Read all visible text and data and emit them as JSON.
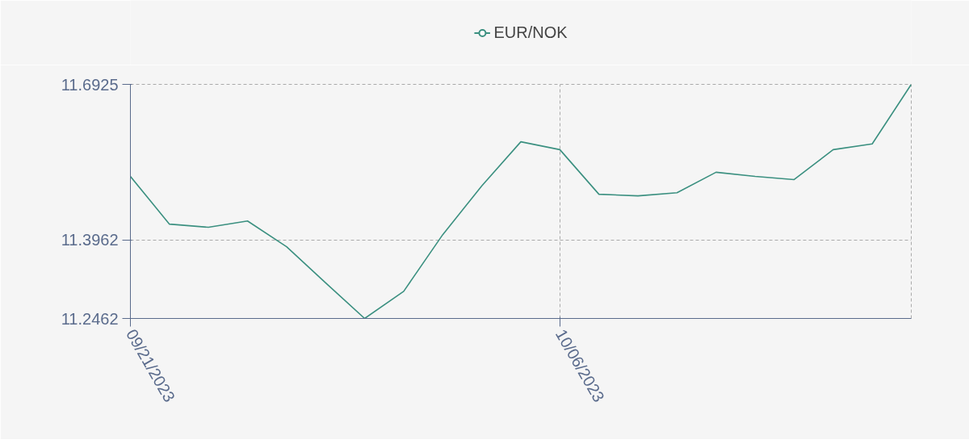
{
  "chart_data": {
    "type": "line",
    "categories": [
      "09/21/2023",
      null,
      null,
      null,
      null,
      null,
      null,
      null,
      null,
      null,
      null,
      "10/06/2023",
      null,
      null,
      null,
      null,
      null,
      null,
      null,
      null,
      null
    ],
    "series": [
      {
        "name": "EUR/NOK",
        "color": "#3b9080",
        "values": [
          11.517,
          11.426,
          11.42,
          11.432,
          11.383,
          11.314,
          11.2462,
          11.298,
          11.406,
          11.499,
          11.583,
          11.568,
          11.483,
          11.48,
          11.486,
          11.525,
          11.517,
          11.511,
          11.568,
          11.579,
          11.6925
        ]
      }
    ],
    "ylim": [
      11.2462,
      11.6925
    ],
    "yticks": [
      11.2462,
      11.3962,
      11.6925
    ],
    "grid": true,
    "legend": "top",
    "marker": "none",
    "line_style": "solid"
  }
}
